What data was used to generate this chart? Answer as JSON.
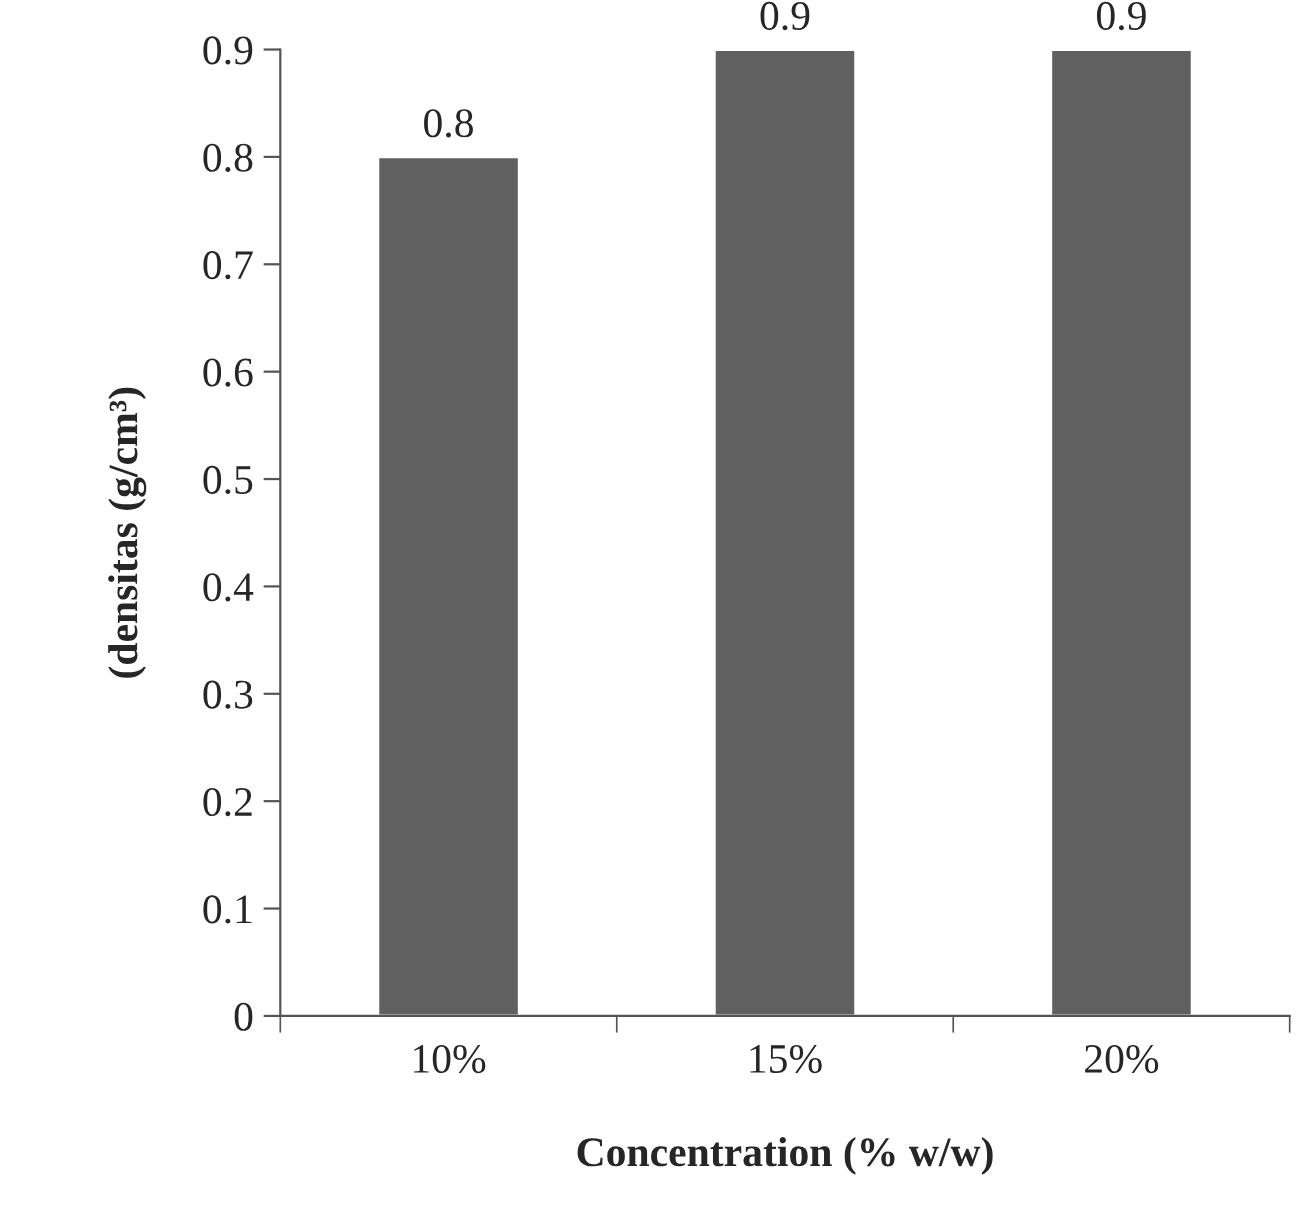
{
  "chart_data": {
    "type": "bar",
    "categories": [
      "10%",
      "15%",
      "20%"
    ],
    "values": [
      0.8,
      0.9,
      0.9
    ],
    "color": "#606060",
    "data_labels": true,
    "xlabel": "Concentration (% w/w)",
    "ylabel": "(densitas (g/cm³)",
    "ylim": [
      0,
      0.9
    ],
    "yticks": [
      {
        "value": 0,
        "label": "0"
      },
      0.1,
      0.2,
      0.3,
      0.4,
      0.5,
      0.6,
      0.7,
      0.8,
      0.9
    ],
    "grid": false,
    "legend": false
  }
}
